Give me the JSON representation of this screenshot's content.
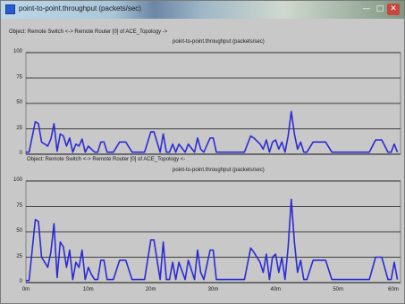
{
  "window": {
    "title": "point-to-point.throughput (packets/sec)",
    "controls": {
      "minimize": "—",
      "maximize": "□",
      "close": "✕"
    }
  },
  "colors": {
    "plot_bg": "#c8c8c8",
    "grid": "#101010",
    "series": "#2b2bd6"
  },
  "chart_data": [
    {
      "type": "line",
      "object_label": "Object: Remote Switch <-> Remote Router [0] of ACE_Topology ->",
      "title": "point-to-point.throughput (packets/sec)",
      "ylim": [
        0,
        100
      ],
      "yticks": [
        "100",
        "75",
        "50",
        "25",
        "0"
      ],
      "xlim": [
        0,
        60
      ],
      "xticks": [],
      "grid": true,
      "series": [
        {
          "x": [
            0.0,
            0.5,
            1.5,
            2.0,
            2.5,
            3.0,
            3.5,
            4.0,
            4.5,
            5.0,
            5.5,
            6.0,
            6.5,
            7.0,
            7.5,
            8.0,
            8.5,
            9.0,
            9.5,
            10.0,
            10.5,
            11.0,
            11.5,
            12.0,
            12.5,
            13.0,
            14.0,
            15.0,
            16.0,
            17.0,
            18.0,
            19.0,
            20.0,
            20.5,
            21.5,
            22.0,
            22.5,
            23.0,
            23.5,
            24.0,
            24.5,
            25.5,
            26.0,
            27.0,
            27.5,
            28.0,
            28.5,
            29.5,
            30.0,
            30.5,
            31.0,
            32.0,
            33.0,
            34.0,
            35.0,
            36.0,
            36.5,
            37.5,
            38.0,
            38.5,
            39.0,
            39.5,
            40.0,
            40.5,
            41.0,
            41.5,
            42.0,
            42.5,
            43.0,
            43.5,
            44.0,
            44.5,
            45.0,
            46.0,
            47.0,
            48.0,
            49.0,
            50.0,
            51.0,
            52.0,
            53.0,
            54.0,
            55.0,
            56.0,
            57.0,
            58.0,
            58.5,
            59.0,
            59.5
          ],
          "y": [
            2,
            2,
            32,
            30,
            12,
            10,
            8,
            15,
            30,
            3,
            20,
            18,
            8,
            16,
            2,
            10,
            8,
            15,
            2,
            8,
            5,
            2,
            2,
            12,
            12,
            2,
            2,
            12,
            12,
            2,
            2,
            2,
            22,
            22,
            2,
            20,
            2,
            2,
            10,
            2,
            10,
            2,
            10,
            2,
            16,
            5,
            2,
            16,
            16,
            2,
            2,
            2,
            2,
            2,
            2,
            18,
            16,
            10,
            5,
            14,
            2,
            12,
            14,
            5,
            12,
            2,
            18,
            42,
            20,
            5,
            12,
            2,
            2,
            12,
            12,
            12,
            2,
            2,
            2,
            2,
            2,
            2,
            2,
            14,
            14,
            2,
            2,
            10,
            2
          ]
        }
      ]
    },
    {
      "type": "line",
      "object_label": "Object: Remote Switch <-> Remote Router [0] of ACE_Topology <-",
      "title": "point-to-point.throughput (packets/sec)",
      "ylim": [
        0,
        100
      ],
      "yticks": [
        "100",
        "75",
        "50",
        "25",
        "0"
      ],
      "xlim": [
        0,
        60
      ],
      "xticks": [
        "0m",
        "10m",
        "20m",
        "30m",
        "40m",
        "50m",
        "60m"
      ],
      "grid": true,
      "series": [
        {
          "x": [
            0.0,
            0.5,
            1.5,
            2.0,
            2.5,
            3.0,
            3.5,
            4.0,
            4.5,
            5.0,
            5.5,
            6.0,
            6.5,
            7.0,
            7.5,
            8.0,
            8.5,
            9.0,
            9.5,
            10.0,
            10.5,
            11.0,
            11.5,
            12.0,
            12.5,
            13.0,
            14.0,
            15.0,
            16.0,
            17.0,
            18.0,
            19.0,
            20.0,
            20.5,
            21.5,
            22.0,
            22.5,
            23.0,
            23.5,
            24.0,
            24.5,
            25.5,
            26.0,
            27.0,
            27.5,
            28.0,
            28.5,
            29.5,
            30.0,
            30.5,
            31.0,
            32.0,
            33.0,
            34.0,
            35.0,
            36.0,
            36.5,
            37.5,
            38.0,
            38.5,
            39.0,
            39.5,
            40.0,
            40.5,
            41.0,
            41.5,
            42.0,
            42.5,
            43.0,
            43.5,
            44.0,
            44.5,
            45.0,
            46.0,
            47.0,
            48.0,
            49.0,
            50.0,
            51.0,
            52.0,
            53.0,
            54.0,
            55.0,
            56.0,
            57.0,
            58.0,
            58.5,
            59.0,
            59.5
          ],
          "y": [
            2,
            2,
            62,
            60,
            25,
            20,
            15,
            30,
            58,
            5,
            40,
            35,
            15,
            32,
            3,
            20,
            15,
            32,
            3,
            15,
            8,
            3,
            3,
            22,
            22,
            3,
            3,
            22,
            22,
            3,
            3,
            3,
            42,
            42,
            3,
            40,
            3,
            3,
            20,
            3,
            20,
            3,
            22,
            3,
            32,
            10,
            3,
            32,
            32,
            3,
            3,
            3,
            3,
            3,
            3,
            34,
            30,
            20,
            10,
            28,
            3,
            25,
            28,
            10,
            25,
            3,
            35,
            82,
            40,
            10,
            22,
            3,
            3,
            22,
            22,
            22,
            3,
            3,
            3,
            3,
            3,
            3,
            3,
            25,
            25,
            3,
            3,
            20,
            3
          ]
        }
      ]
    }
  ]
}
